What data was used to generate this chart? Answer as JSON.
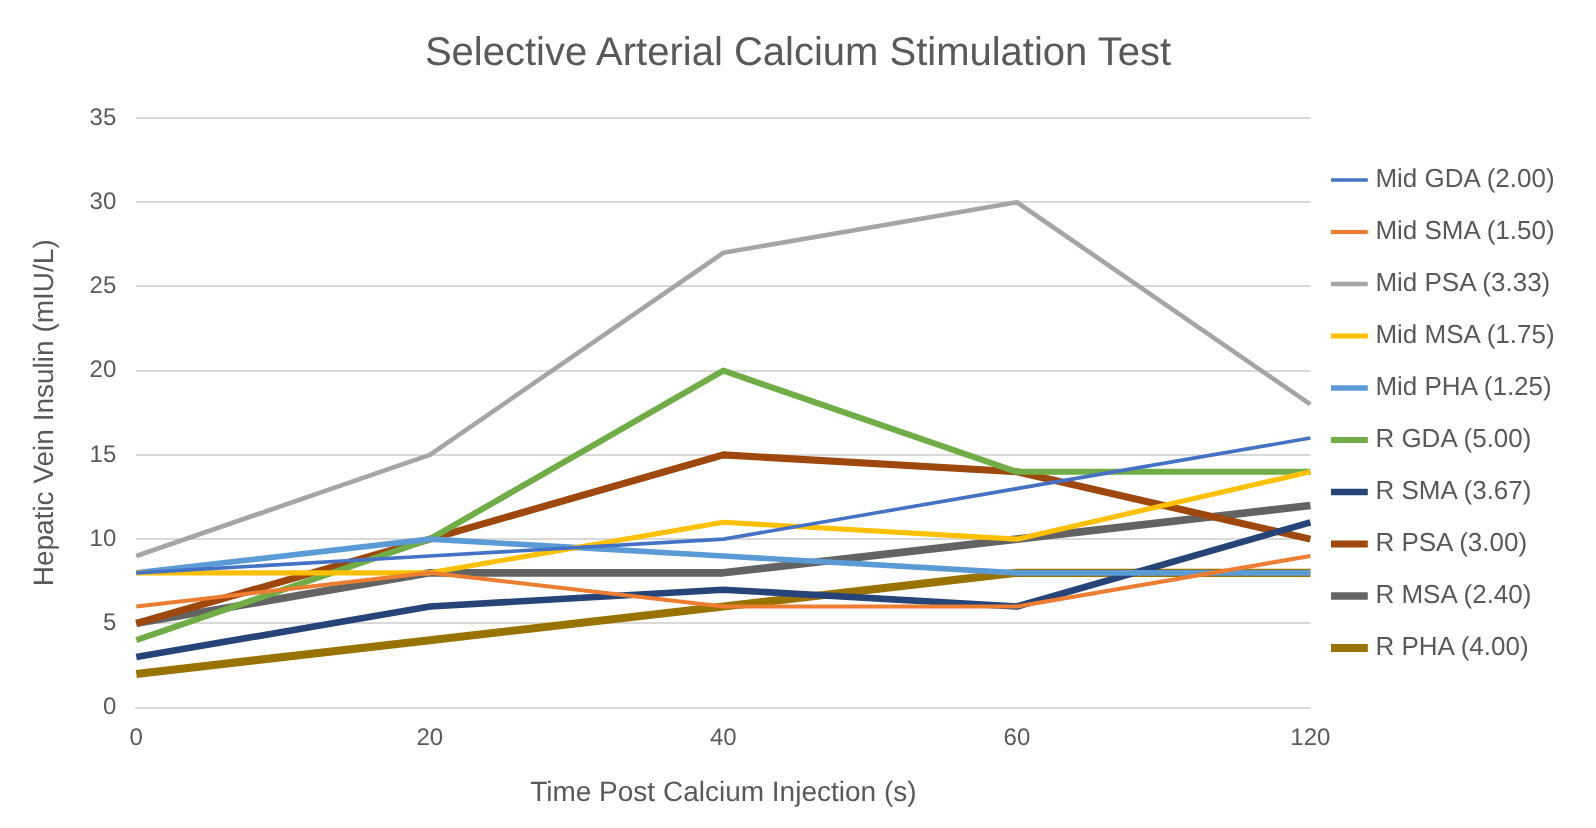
{
  "chart_data": {
    "type": "line",
    "title": "Selective Arterial Calcium Stimulation Test",
    "xlabel": "Time Post Calcium Injection (s)",
    "ylabel": "Hepatic Vein Insulin (mIU/L)",
    "categories": [
      "0",
      "20",
      "40",
      "60",
      "120"
    ],
    "series": [
      {
        "name": "Mid GDA (2.00)",
        "color": "#4472c4",
        "values": [
          8,
          9,
          10,
          13,
          16
        ]
      },
      {
        "name": "Mid SMA (1.50)",
        "color": "#ed7d31",
        "values": [
          6,
          8,
          6,
          6,
          9
        ]
      },
      {
        "name": "Mid PSA (3.33)",
        "color": "#a5a5a5",
        "values": [
          9,
          15,
          27,
          30,
          18
        ]
      },
      {
        "name": "Mid MSA (1.75)",
        "color": "#ffc000",
        "values": [
          8,
          8,
          11,
          10,
          14
        ]
      },
      {
        "name": "Mid PHA (1.25)",
        "color": "#5b9bd5",
        "values": [
          8,
          10,
          9,
          8,
          8
        ]
      },
      {
        "name": "R GDA (5.00)",
        "color": "#70ad47",
        "values": [
          4,
          10,
          20,
          14,
          14
        ]
      },
      {
        "name": "R SMA (3.67)",
        "color": "#264478",
        "values": [
          3,
          6,
          7,
          6,
          11
        ]
      },
      {
        "name": "R PSA (3.00)",
        "color": "#9e480e",
        "values": [
          5,
          10,
          15,
          14,
          10
        ]
      },
      {
        "name": "R MSA (2.40)",
        "color": "#636363",
        "values": [
          5,
          8,
          8,
          10,
          12
        ]
      },
      {
        "name": "R PHA (4.00)",
        "color": "#997300",
        "values": [
          2,
          4,
          6,
          8,
          8
        ]
      }
    ],
    "ylim": [
      0,
      35
    ],
    "yticks": [
      0,
      5,
      10,
      15,
      20,
      25,
      30,
      35
    ],
    "grid": "y",
    "legend": "right",
    "marker": "none",
    "line_style": "solid"
  }
}
